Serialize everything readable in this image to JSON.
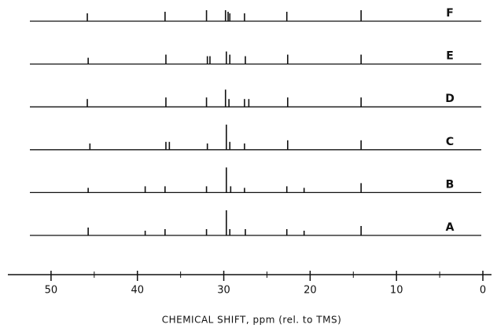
{
  "chart_data": {
    "type": "stick-stack",
    "x_label": "CHEMICAL SHIFT, ppm (rel. to TMS)",
    "xlim": [
      55,
      -1
    ],
    "xticks": [
      50,
      40,
      30,
      20,
      10,
      0
    ],
    "xminorticks": [
      45,
      35,
      25,
      15,
      5
    ],
    "color": "#111111",
    "series": [
      {
        "name": "A",
        "x": [
          45.7,
          39.1,
          36.8,
          32.0,
          29.7,
          29.3,
          27.5,
          22.7,
          20.7,
          14.1
        ],
        "values": [
          10,
          6,
          8,
          8,
          32,
          8,
          8,
          8,
          6,
          12
        ]
      },
      {
        "name": "B",
        "x": [
          45.7,
          39.1,
          36.8,
          32.0,
          29.7,
          29.2,
          27.6,
          22.7,
          20.7,
          14.1
        ],
        "values": [
          6,
          8,
          8,
          8,
          32,
          8,
          6,
          8,
          6,
          12
        ]
      },
      {
        "name": "C",
        "x": [
          45.5,
          36.7,
          36.3,
          31.9,
          29.7,
          29.3,
          27.6,
          22.6,
          14.1
        ],
        "values": [
          8,
          10,
          10,
          8,
          32,
          10,
          8,
          12,
          12
        ]
      },
      {
        "name": "D",
        "x": [
          45.8,
          36.7,
          32.0,
          29.8,
          29.4,
          27.6,
          27.1,
          22.6,
          14.1
        ],
        "values": [
          10,
          12,
          12,
          22,
          10,
          10,
          10,
          12,
          12
        ]
      },
      {
        "name": "E",
        "x": [
          45.7,
          36.7,
          31.9,
          31.6,
          29.7,
          29.3,
          27.5,
          22.6,
          14.1
        ],
        "values": [
          8,
          12,
          10,
          10,
          16,
          12,
          10,
          12,
          12
        ]
      },
      {
        "name": "F",
        "x": [
          45.8,
          36.8,
          32.0,
          29.8,
          29.5,
          29.3,
          27.6,
          22.7,
          14.1
        ],
        "values": [
          10,
          12,
          14,
          14,
          12,
          10,
          10,
          12,
          14
        ]
      }
    ]
  }
}
